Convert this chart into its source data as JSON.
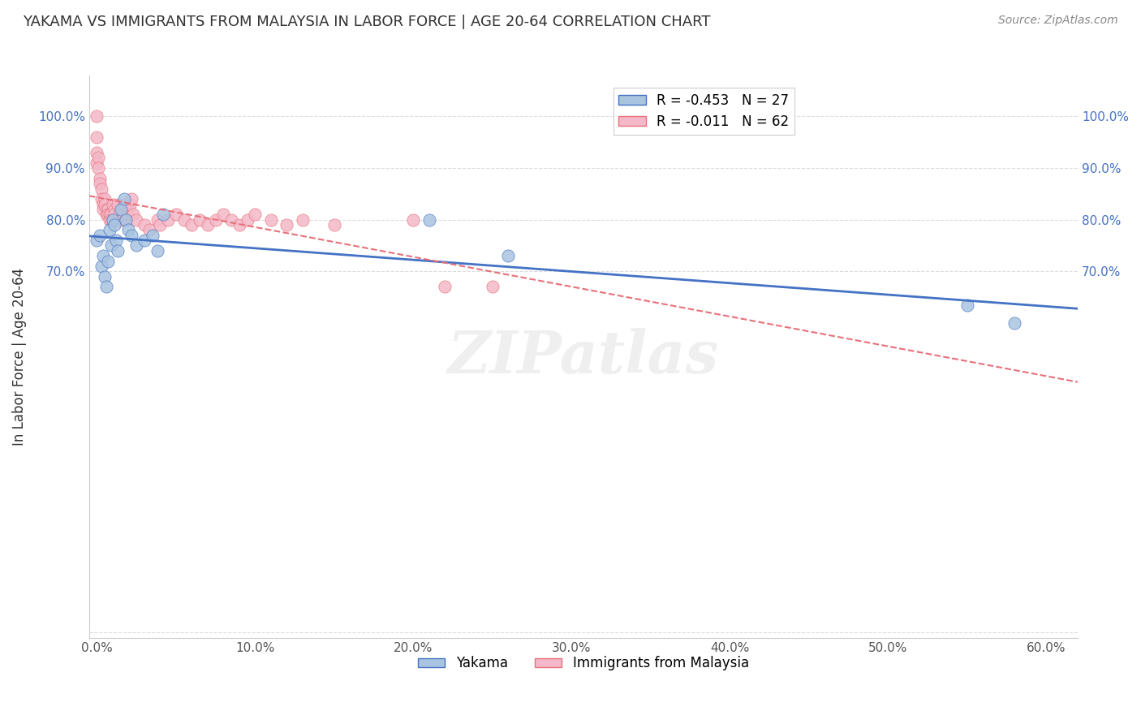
{
  "title": "YAKAMA VS IMMIGRANTS FROM MALAYSIA IN LABOR FORCE | AGE 20-64 CORRELATION CHART",
  "source": "Source: ZipAtlas.com",
  "xlabel": "",
  "ylabel": "In Labor Force | Age 20-64",
  "xlim": [
    -0.005,
    0.62
  ],
  "ylim": [
    -0.01,
    1.08
  ],
  "yakama_x": [
    0.0,
    0.002,
    0.003,
    0.004,
    0.005,
    0.006,
    0.007,
    0.008,
    0.009,
    0.01,
    0.011,
    0.012,
    0.013,
    0.015,
    0.017,
    0.018,
    0.02,
    0.022,
    0.025,
    0.03,
    0.035,
    0.038,
    0.042,
    0.21,
    0.26,
    0.55,
    0.58
  ],
  "yakama_y": [
    0.76,
    0.77,
    0.71,
    0.73,
    0.69,
    0.67,
    0.72,
    0.78,
    0.75,
    0.8,
    0.79,
    0.76,
    0.74,
    0.82,
    0.84,
    0.8,
    0.78,
    0.77,
    0.75,
    0.76,
    0.77,
    0.74,
    0.81,
    0.8,
    0.73,
    0.635,
    0.6
  ],
  "malaysia_x": [
    0.0,
    0.0,
    0.0,
    0.0,
    0.001,
    0.001,
    0.002,
    0.002,
    0.003,
    0.003,
    0.004,
    0.004,
    0.005,
    0.005,
    0.006,
    0.006,
    0.007,
    0.007,
    0.008,
    0.008,
    0.009,
    0.009,
    0.01,
    0.01,
    0.011,
    0.011,
    0.012,
    0.013,
    0.014,
    0.015,
    0.016,
    0.017,
    0.018,
    0.019,
    0.02,
    0.021,
    0.022,
    0.023,
    0.025,
    0.03,
    0.033,
    0.038,
    0.04,
    0.045,
    0.05,
    0.055,
    0.06,
    0.065,
    0.07,
    0.075,
    0.08,
    0.085,
    0.09,
    0.095,
    0.1,
    0.11,
    0.12,
    0.13,
    0.15,
    0.2,
    0.22,
    0.25
  ],
  "malaysia_y": [
    1.0,
    0.96,
    0.93,
    0.91,
    0.92,
    0.9,
    0.88,
    0.87,
    0.86,
    0.84,
    0.83,
    0.82,
    0.84,
    0.83,
    0.82,
    0.81,
    0.82,
    0.81,
    0.81,
    0.8,
    0.81,
    0.8,
    0.8,
    0.83,
    0.82,
    0.81,
    0.8,
    0.83,
    0.81,
    0.8,
    0.82,
    0.83,
    0.8,
    0.81,
    0.82,
    0.83,
    0.84,
    0.81,
    0.8,
    0.79,
    0.78,
    0.8,
    0.79,
    0.8,
    0.81,
    0.8,
    0.79,
    0.8,
    0.79,
    0.8,
    0.81,
    0.8,
    0.79,
    0.8,
    0.81,
    0.8,
    0.79,
    0.8,
    0.79,
    0.8,
    0.67,
    0.67
  ],
  "yakama_color": "#a8c4e0",
  "malaysia_color": "#f4b8c8",
  "yakama_line_color": "#4472c4",
  "malaysia_line_color": "#e8707a",
  "yakama_r": -0.453,
  "yakama_n": 27,
  "malaysia_r": -0.011,
  "malaysia_n": 62,
  "watermark": "ZIPatlas",
  "yticks": [
    0.0,
    0.7,
    0.8,
    0.9,
    1.0
  ],
  "ytick_labels": [
    "",
    "70.0%",
    "80.0%",
    "90.0%",
    "100.0%"
  ],
  "xticks": [
    0.0,
    0.1,
    0.2,
    0.3,
    0.4,
    0.5,
    0.6
  ],
  "xtick_labels": [
    "0.0%",
    "10.0%",
    "20.0%",
    "30.0%",
    "40.0%",
    "50.0%",
    "60.0%"
  ]
}
